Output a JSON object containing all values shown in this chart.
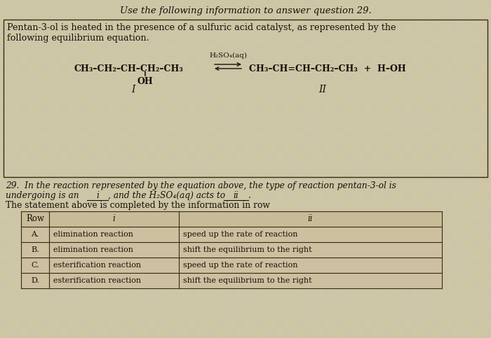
{
  "title": "Use the following information to answer question 29.",
  "bg_color": "#cdc5a8",
  "text_color": "#1a1008",
  "intro_line1": "Pentan-3-ol is heated in the presence of a sulfuric acid catalyst, as represented by the",
  "intro_line2": "following equilibrium equation.",
  "catalyst": "H₂SO₄(aq)",
  "reactant": "CH₃–CH₂–CH–CH₂–CH₃",
  "reactant_sub": "OH",
  "reactant_label": "I",
  "product": "CH₃–CH=CH–CH₂–CH₃  +  H–OH",
  "product_label": "II",
  "q29_line1": "29.  In the reaction represented by the equation above, the type of reaction pentan-3-ol is",
  "q29_line2a": "undergoing is an ",
  "q29_line2b": "i",
  "q29_line2c": ", and the H₂SO₄(aq) acts to ",
  "q29_line2d": "ii",
  "q29_line2e": ".",
  "q29_line3": "The statement above is completed by the information in row",
  "table_headers": [
    "Row",
    "i",
    "ii"
  ],
  "table_rows": [
    [
      "A.",
      "elimination reaction",
      "speed up the rate of reaction"
    ],
    [
      "B.",
      "elimination reaction",
      "shift the equilibrium to the right"
    ],
    [
      "C.",
      "esterification reaction",
      "speed up the rate of reaction"
    ],
    [
      "D.",
      "esterification reaction",
      "shift the equilibrium to the right"
    ]
  ],
  "box_color": "#3a2a10",
  "grid_color1": "#d8d0b0",
  "grid_color2": "#c8bc98"
}
